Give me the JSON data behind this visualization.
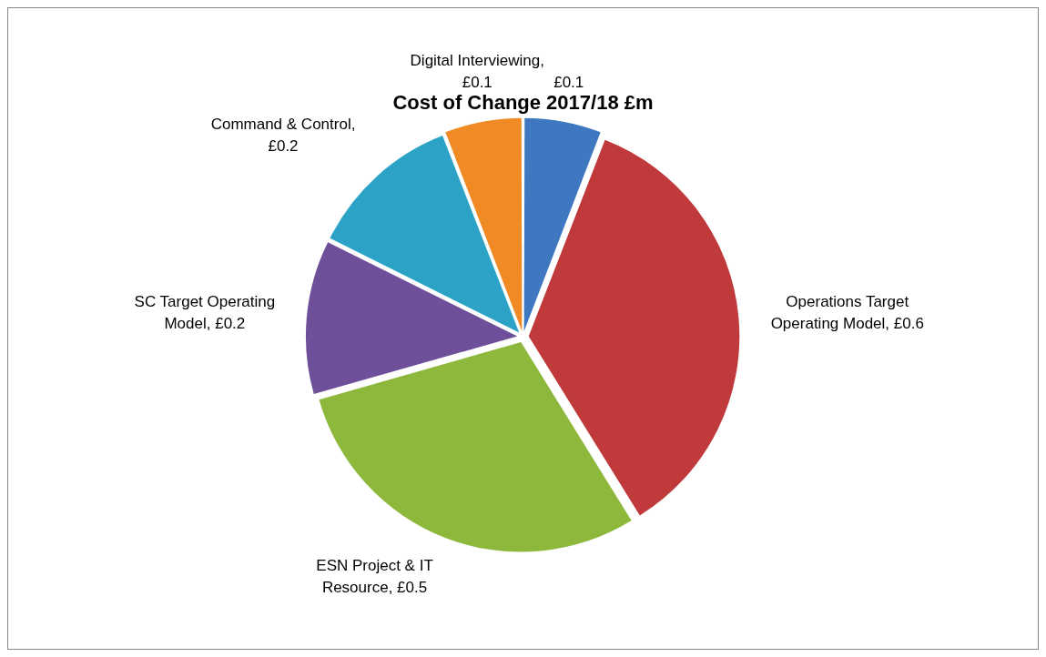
{
  "chart_data": {
    "type": "pie",
    "title": "Cost of Change 2017/18 £m",
    "categories": [
      null,
      "Operations Target Operating Model, £0.6",
      "ESN Project & IT Resource, £0.5",
      "SC Target Operating Model, £0.2",
      "Command & Control, £0.2",
      "Digital Interviewing, £0.1"
    ],
    "values": [
      0.1,
      0.6,
      0.5,
      0.2,
      0.2,
      0.1
    ],
    "value_labels": [
      "£0.1",
      null,
      null,
      null,
      null,
      null
    ],
    "colors": [
      "#3f78c0",
      "#c0393b",
      "#8db83c",
      "#6e4f9a",
      "#2ca3c6",
      "#f08a24"
    ],
    "legend": false
  }
}
